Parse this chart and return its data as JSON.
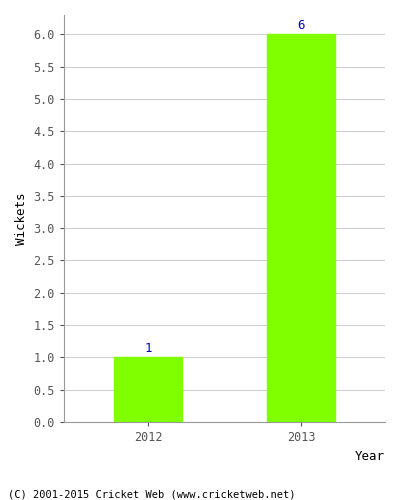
{
  "categories": [
    "2012",
    "2013"
  ],
  "values": [
    1,
    6
  ],
  "bar_color": "#7fff00",
  "bar_width": 0.45,
  "xlabel": "Year",
  "ylabel": "Wickets",
  "ylim": [
    0,
    6.3
  ],
  "yticks": [
    0.0,
    0.5,
    1.0,
    1.5,
    2.0,
    2.5,
    3.0,
    3.5,
    4.0,
    4.5,
    5.0,
    5.5,
    6.0
  ],
  "annotation_color": "#0000cc",
  "annotation_fontsize": 9,
  "xlabel_fontsize": 9,
  "ylabel_fontsize": 9,
  "tick_fontsize": 8.5,
  "background_color": "#ffffff",
  "axes_background_color": "#ffffff",
  "grid_color": "#cccccc",
  "footer_text": "(C) 2001-2015 Cricket Web (www.cricketweb.net)",
  "footer_fontsize": 7.5,
  "x_positions": [
    0,
    1
  ]
}
